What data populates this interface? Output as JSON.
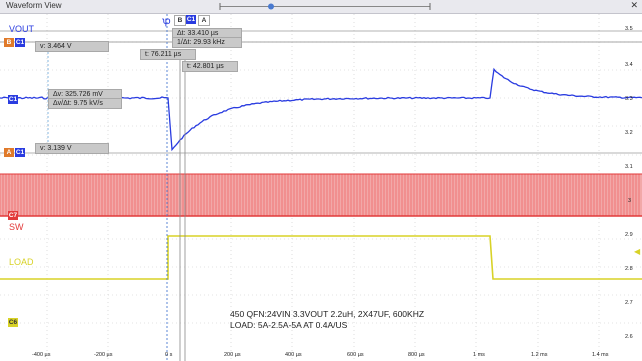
{
  "window": {
    "title": "Waveform View"
  },
  "cursor_labels": {
    "b": "B",
    "c1": "C1",
    "a": "A"
  },
  "channels": {
    "vout": {
      "name": "VOUT",
      "color": "#2a3ce0",
      "marker": "C1"
    },
    "sw": {
      "name": "SW",
      "color": "#e23a3a",
      "marker": "C7"
    },
    "load": {
      "name": "LOAD",
      "color": "#d8d227",
      "marker": "C6"
    }
  },
  "cursor_readouts": {
    "b_v": "v: 3.464 V",
    "a_v": "v: 3.139 V",
    "delta_v": "Δv: 325.726 mV",
    "dv_dt": "Δv/Δt: 9.75 kV/s",
    "delta_t": "Δt: 33.410 µs",
    "inv_dt": "1/Δt: 29.93 kHz",
    "t_a": "t: 76.211 µs",
    "t_b": "t: 42.801 µs"
  },
  "right_axis": [
    "3.5",
    "3.4",
    "3.3",
    "3.2",
    "3.1",
    "3",
    "2.9",
    "2.8",
    "2.7",
    "2.6"
  ],
  "time_axis": [
    "-400 µs",
    "-200 µs",
    "0 s",
    "200 µs",
    "400 µs",
    "600 µs",
    "800 µs",
    "1 ms",
    "1.2 ms",
    "1.4 ms"
  ],
  "annotation": {
    "line1": "450 QFN:24VIN 3.3VOUT 2.2uH, 2X47UF, 600KHZ",
    "line2": "LOAD: 5A-2.5A-5A AT 0.4A/US"
  },
  "colors": {
    "cursor_chip": "#2a3ce0",
    "a_chip": "#e07a2a",
    "grid": "#c8c8c8"
  }
}
